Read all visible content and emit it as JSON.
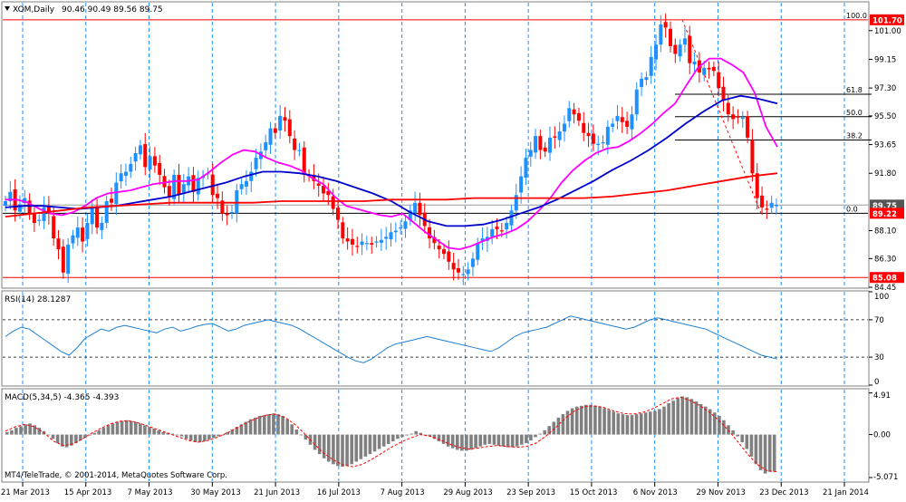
{
  "header": {
    "symbol": "XOM,Daily",
    "ohlc": "90.46 90.49 89.56 89.75"
  },
  "chart_data": [
    {
      "type": "candlestick",
      "title": "XOM,Daily",
      "ylim": [
        84.45,
        102.8
      ],
      "y_ticks": [
        "101.00",
        "99.15",
        "97.30",
        "95.50",
        "93.65",
        "91.80",
        "88.10",
        "86.30",
        "84.45"
      ],
      "x_ticks": [
        "21 Mar 2013",
        "15 Apr 2013",
        "7 May 2013",
        "30 May 2013",
        "21 Jun 2013",
        "16 Jul 2013",
        "7 Aug 2013",
        "29 Aug 2013",
        "23 Sep 2013",
        "15 Oct 2013",
        "6 Nov 2013",
        "29 Nov 2013",
        "23 Dec 2013",
        "21 Jan 2014"
      ],
      "price_tags": [
        {
          "label": "101.70",
          "value": 101.7,
          "color": "#ff0000"
        },
        {
          "label": "89.75",
          "value": 89.75,
          "color": "#555555"
        },
        {
          "label": "89.22",
          "value": 89.22,
          "color": "#ff0000"
        },
        {
          "label": "85.08",
          "value": 85.08,
          "color": "#ff0000"
        }
      ],
      "fibonacci": [
        {
          "label": "100.0",
          "value": 101.7
        },
        {
          "label": "61.8",
          "value": 96.9
        },
        {
          "label": "50.0",
          "value": 95.45
        },
        {
          "label": "38.2",
          "value": 93.95
        },
        {
          "label": "0.0",
          "value": 89.22
        }
      ],
      "series": [
        {
          "kind": "candles",
          "color_up": "#1e90ff",
          "color_down": "#ff0000",
          "path": [
            90,
            90.6,
            89.4,
            89.8,
            90.2,
            89.2,
            88.6,
            88.8,
            89.6,
            89.2,
            87.6,
            86.9,
            85.4,
            87.2,
            87.8,
            88.3,
            87.4,
            88.6,
            89.6,
            88.3,
            88.6,
            90,
            89.9,
            91.2,
            91.8,
            91.9,
            92.4,
            93.1,
            93.6,
            92.2,
            92.9,
            92.3,
            91.7,
            90.9,
            90.3,
            91.7,
            90.4,
            91.1,
            91.6,
            90.6,
            91.5,
            91.6,
            91.8,
            90.4,
            90.2,
            89.2,
            89.1,
            89.3,
            90.7,
            91.1,
            91.3,
            91.9,
            92.8,
            93.2,
            93.8,
            94.7,
            94.4,
            95.5,
            95.2,
            94.2,
            93.3,
            93.3,
            91.8,
            91.6,
            91.3,
            91,
            90.5,
            90.4,
            89.5,
            88.8,
            87.6,
            87.4,
            87.2,
            87.1,
            87.4,
            87.3,
            87.2,
            87.4,
            87.5,
            87.7,
            88,
            88.1,
            88.3,
            88.7,
            89.4,
            89.9,
            89.1,
            88.4,
            87.6,
            87.3,
            86.9,
            86.6,
            86.1,
            85.6,
            85.4,
            85.3,
            85.6,
            86.3,
            87.3,
            87.6,
            87.7,
            88.2,
            88.2,
            88.1,
            88.6,
            89.4,
            90.4,
            91.6,
            92.8,
            93.3,
            94.2,
            93.3,
            93.2,
            94.1,
            94.1,
            94.5,
            95,
            96,
            95.6,
            95.2,
            94.4,
            94.2,
            93.7,
            93.7,
            93.8,
            94.8,
            95,
            95.5,
            95.1,
            94.8,
            95.6,
            97.2,
            97.9,
            98,
            99.3,
            100.1,
            101.4,
            101.2,
            100,
            99.5,
            100.1,
            100.5,
            98.9,
            99,
            98.3,
            98.6,
            98.5,
            98.4,
            97.3,
            96.5,
            95.6,
            95.3,
            95.4,
            95.4,
            94.1,
            91.8,
            90.2,
            89.6,
            89.5,
            89.9,
            89.75
          ]
        },
        {
          "kind": "line",
          "name": "",
          "color": "#ff00ff",
          "path": [
            90.1,
            90.1,
            89.9,
            89.5,
            89.2,
            89.1,
            89.3,
            89.7,
            90.2,
            90.5,
            90.6,
            90.7,
            90.9,
            91.1,
            91.2,
            91.3,
            91.3,
            91.4,
            91.9,
            92.5,
            93.0,
            93.3,
            93.2,
            92.8,
            92.5,
            92.3,
            92.0,
            91.5,
            91.1,
            90.3,
            89.7,
            89.5,
            89.3,
            89.1,
            89.0,
            89.2,
            88.6,
            88.0,
            87.5,
            87.0,
            86.9,
            87.1,
            87.4,
            87.7,
            87.9,
            88.2,
            88.7,
            89.4,
            90.2,
            91.2,
            92.0,
            92.6,
            93.1,
            93.4,
            93.5,
            93.9,
            94.4,
            95.0,
            95.7,
            96.3,
            97.5,
            98.6,
            99.2,
            99.2,
            98.8,
            98.3,
            97.0,
            94.8,
            93.5
          ]
        },
        {
          "kind": "line",
          "name": "",
          "color": "#0000cd",
          "path": [
            89.6,
            89.7,
            89.7,
            89.6,
            89.5,
            89.6,
            89.7,
            89.9,
            90.1,
            90.3,
            90.6,
            90.9,
            91.2,
            91.6,
            91.9,
            91.9,
            91.8,
            91.6,
            91.3,
            90.9,
            90.5,
            90.0,
            89.3,
            88.7,
            88.4,
            88.4,
            88.5,
            88.8,
            89.2,
            89.6,
            90.1,
            90.7,
            91.3,
            92.0,
            92.6,
            93.3,
            94.1,
            95.0,
            95.8,
            96.5,
            96.8,
            96.6,
            96.3
          ]
        },
        {
          "kind": "line",
          "name": "",
          "color": "#ff0000",
          "path": [
            89.0,
            89.2,
            89.4,
            89.6,
            89.7,
            89.8,
            89.9,
            89.9,
            89.9,
            89.9,
            90.0,
            90.0,
            90.0,
            90.0,
            90.1,
            90.1,
            90.1,
            90.2,
            90.2,
            90.2,
            90.2,
            90.2,
            90.3,
            90.5,
            90.7,
            91.0,
            91.3,
            91.6,
            91.8
          ]
        }
      ]
    },
    {
      "type": "line",
      "title": "RSI(14) 28.1287",
      "ylim": [
        0,
        100
      ],
      "y_ticks": [
        "100",
        "70",
        "30",
        "0"
      ],
      "levels": [
        70,
        30
      ],
      "series": [
        {
          "name": "RSI(14)",
          "color": "#1e7fd0",
          "values": [
            52,
            58,
            62,
            60,
            54,
            48,
            42,
            36,
            32,
            40,
            50,
            55,
            60,
            58,
            62,
            64,
            62,
            60,
            58,
            56,
            60,
            62,
            58,
            60,
            63,
            65,
            66,
            62,
            58,
            60,
            64,
            66,
            68,
            70,
            68,
            66,
            64,
            60,
            55,
            50,
            45,
            40,
            35,
            30,
            26,
            24,
            28,
            34,
            40,
            44,
            46,
            48,
            50,
            52,
            50,
            48,
            46,
            44,
            42,
            40,
            38,
            36,
            40,
            46,
            52,
            56,
            58,
            60,
            62,
            66,
            70,
            74,
            72,
            70,
            68,
            66,
            64,
            62,
            60,
            62,
            66,
            70,
            72,
            70,
            68,
            66,
            64,
            62,
            60,
            56,
            52,
            48,
            44,
            40,
            36,
            32,
            30,
            28
          ]
        }
      ]
    },
    {
      "type": "bar",
      "title": "MACD(5,34,5) -4.365 -4.393",
      "ylim": [
        -5.5,
        5.3
      ],
      "y_ticks": [
        "4.91",
        "0.00",
        "-5.071"
      ],
      "series": [
        {
          "name": "MACD",
          "color": "#808080",
          "values": [
            0.3,
            0.5,
            0.8,
            1.0,
            1.2,
            1.3,
            1.1,
            0.8,
            0.4,
            0.0,
            -0.5,
            -1.0,
            -1.4,
            -1.5,
            -1.3,
            -1.0,
            -0.7,
            -0.4,
            -0.1,
            0.2,
            0.5,
            0.8,
            1.1,
            1.3,
            1.5,
            1.6,
            1.7,
            1.6,
            1.5,
            1.3,
            1.1,
            0.9,
            0.7,
            0.5,
            0.3,
            0.2,
            0.1,
            0.0,
            -0.2,
            -0.5,
            -0.7,
            -0.9,
            -0.9,
            -0.8,
            -0.6,
            -0.4,
            -0.2,
            0.0,
            0.3,
            0.6,
            0.9,
            1.2,
            1.5,
            1.8,
            2.0,
            2.2,
            2.3,
            2.4,
            2.5,
            2.4,
            2.2,
            1.8,
            1.2,
            0.6,
            0.0,
            -0.6,
            -1.2,
            -1.8,
            -2.3,
            -2.8,
            -3.2,
            -3.5,
            -3.7,
            -3.8,
            -3.7,
            -3.5,
            -3.2,
            -2.9,
            -2.6,
            -2.3,
            -2.0,
            -1.7,
            -1.4,
            -1.1,
            -0.8,
            -0.5,
            -0.3,
            -0.1,
            0.1,
            0.4,
            0.2,
            0.0,
            -0.2,
            -0.5,
            -0.8,
            -1.1,
            -1.4,
            -1.6,
            -1.8,
            -1.9,
            -1.9,
            -1.8,
            -1.6,
            -1.4,
            -1.2,
            -1.1,
            -1.2,
            -1.3,
            -1.4,
            -1.5,
            -1.5,
            -1.4,
            -1.2,
            -1.0,
            -0.7,
            -0.3,
            0.1,
            0.5,
            1.0,
            1.5,
            2.0,
            2.4,
            2.8,
            3.1,
            3.3,
            3.4,
            3.5,
            3.5,
            3.4,
            3.3,
            3.1,
            2.9,
            2.7,
            2.5,
            2.4,
            2.3,
            2.3,
            2.4,
            2.5,
            2.6,
            2.7,
            2.8,
            3.0,
            3.3,
            3.7,
            4.0,
            4.3,
            4.5,
            4.4,
            4.2,
            3.9,
            3.6,
            3.3,
            3.0,
            2.6,
            2.2,
            1.7,
            1.1,
            0.5,
            -0.2,
            -0.9,
            -1.7,
            -2.6,
            -3.5,
            -4.2,
            -4.6,
            -4.4,
            -4.365
          ]
        },
        {
          "name": "Signal",
          "color": "#ff0000",
          "style": "dashed",
          "values": [
            0.4,
            0.9,
            1.2,
            0.9,
            0.2,
            -0.8,
            -1.3,
            -1.1,
            -0.5,
            0.2,
            0.8,
            1.3,
            1.6,
            1.6,
            1.3,
            0.9,
            0.5,
            0.1,
            -0.3,
            -0.7,
            -0.9,
            -0.7,
            -0.3,
            0.2,
            0.8,
            1.4,
            1.9,
            2.3,
            2.4,
            2.0,
            1.2,
            0.1,
            -1.1,
            -2.2,
            -3.0,
            -3.6,
            -3.8,
            -3.5,
            -2.9,
            -2.2,
            -1.5,
            -0.9,
            -0.4,
            0.0,
            -0.2,
            -0.6,
            -1.1,
            -1.5,
            -1.7,
            -1.6,
            -1.4,
            -1.3,
            -1.4,
            -1.5,
            -1.4,
            -1.0,
            -0.2,
            0.8,
            1.9,
            2.8,
            3.3,
            3.4,
            3.2,
            2.8,
            2.5,
            2.4,
            2.6,
            3.0,
            3.6,
            4.2,
            4.4,
            4.0,
            3.4,
            2.6,
            1.6,
            0.4,
            -1.0,
            -2.4,
            -3.6,
            -4.3,
            -4.393
          ]
        }
      ]
    }
  ],
  "panels": {
    "rsi": {
      "label": "RSI(14) 28.1287"
    },
    "macd": {
      "label": "MACD(5,34,5) -4.365 -4.393"
    }
  },
  "footer": {
    "copyright": "MT4/TeleTrade, © 2001-2014, MetaQuotes Software Corp."
  }
}
